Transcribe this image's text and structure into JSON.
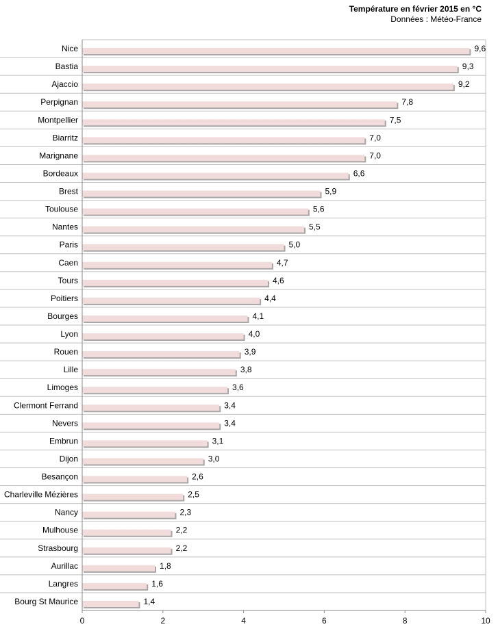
{
  "chart_data": {
    "type": "bar",
    "orientation": "horizontal",
    "title": "Température en février 2015 en °C",
    "subtitle": "Données : Météo-France",
    "xlim": [
      0,
      10
    ],
    "xticks": [
      "0",
      "2",
      "4",
      "6",
      "8",
      "10"
    ],
    "grid": "horizontal separators",
    "colors": {
      "bar": "#f2dcdb",
      "bar_shadow": "#a6a6a6",
      "grid": "#bfbfbf",
      "axis": "#888888"
    },
    "categories": [
      "Nice",
      "Bastia",
      "Ajaccio",
      "Perpignan",
      "Montpellier",
      "Biarritz",
      "Marignane",
      "Bordeaux",
      "Brest",
      "Toulouse",
      "Nantes",
      "Paris",
      "Caen",
      "Tours",
      "Poitiers",
      "Bourges",
      "Lyon",
      "Rouen",
      "Lille",
      "Limoges",
      "Clermont Ferrand",
      "Nevers",
      "Embrun",
      "Dijon",
      "Besançon",
      "Charleville Mézières",
      "Nancy",
      "Mulhouse",
      "Strasbourg",
      "Aurillac",
      "Langres",
      "Bourg St Maurice"
    ],
    "values": [
      9.6,
      9.3,
      9.2,
      7.8,
      7.5,
      7.0,
      7.0,
      6.6,
      5.9,
      5.6,
      5.5,
      5.0,
      4.7,
      4.6,
      4.4,
      4.1,
      4.0,
      3.9,
      3.8,
      3.6,
      3.4,
      3.4,
      3.1,
      3.0,
      2.6,
      2.5,
      2.3,
      2.2,
      2.2,
      1.8,
      1.6,
      1.4
    ],
    "value_labels": [
      "9,6",
      "9,3",
      "9,2",
      "7,8",
      "7,5",
      "7,0",
      "7,0",
      "6,6",
      "5,9",
      "5,6",
      "5,5",
      "5,0",
      "4,7",
      "4,6",
      "4,4",
      "4,1",
      "4,0",
      "3,9",
      "3,8",
      "3,6",
      "3,4",
      "3,4",
      "3,1",
      "3,0",
      "2,6",
      "2,5",
      "2,3",
      "2,2",
      "2,2",
      "1,8",
      "1,6",
      "1,4"
    ]
  }
}
